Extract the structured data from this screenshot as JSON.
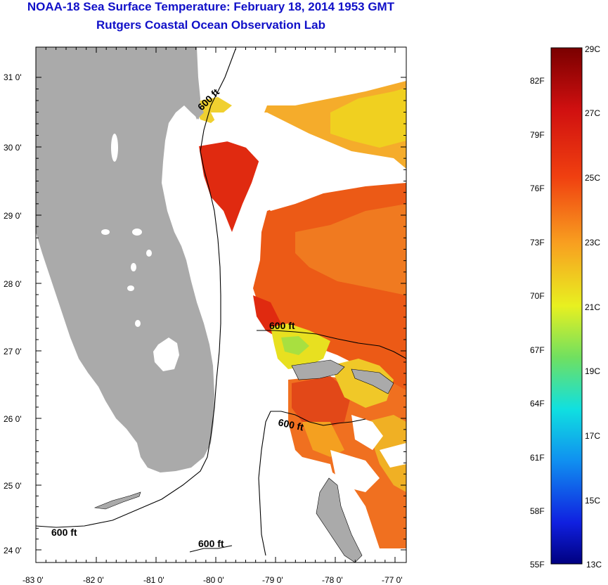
{
  "title": "NOAA-18 Sea Surface Temperature:  February 18, 2014 1953 GMT",
  "subtitle": "Rutgers Coastal Ocean Observation Lab",
  "map": {
    "lat_labels": [
      "31 0'",
      "30 0'",
      "29 0'",
      "28 0'",
      "27 0'",
      "26 0'",
      "25 0'",
      "24 0'"
    ],
    "lon_labels": [
      "-83 0'",
      "-82 0'",
      "-81 0'",
      "-80 0'",
      "-79 0'",
      "-78 0'",
      "-77 0'"
    ],
    "contour_labels": [
      "600 ft",
      "600 ft",
      "600 ft",
      "600 ft",
      "600 ft"
    ]
  },
  "colorbar": {
    "celsius_labels": [
      "29C",
      "27C",
      "25C",
      "23C",
      "21C",
      "19C",
      "17C",
      "15C",
      "13C"
    ],
    "fahrenheit_labels": [
      "82F",
      "79F",
      "76F",
      "73F",
      "70F",
      "67F",
      "64F",
      "61F",
      "58F",
      "55F"
    ]
  },
  "colors": {
    "title": "#1010c8",
    "land": "#aaaaaa",
    "warm": "#e83010",
    "orange": "#f07020",
    "yellow": "#f0e020"
  }
}
